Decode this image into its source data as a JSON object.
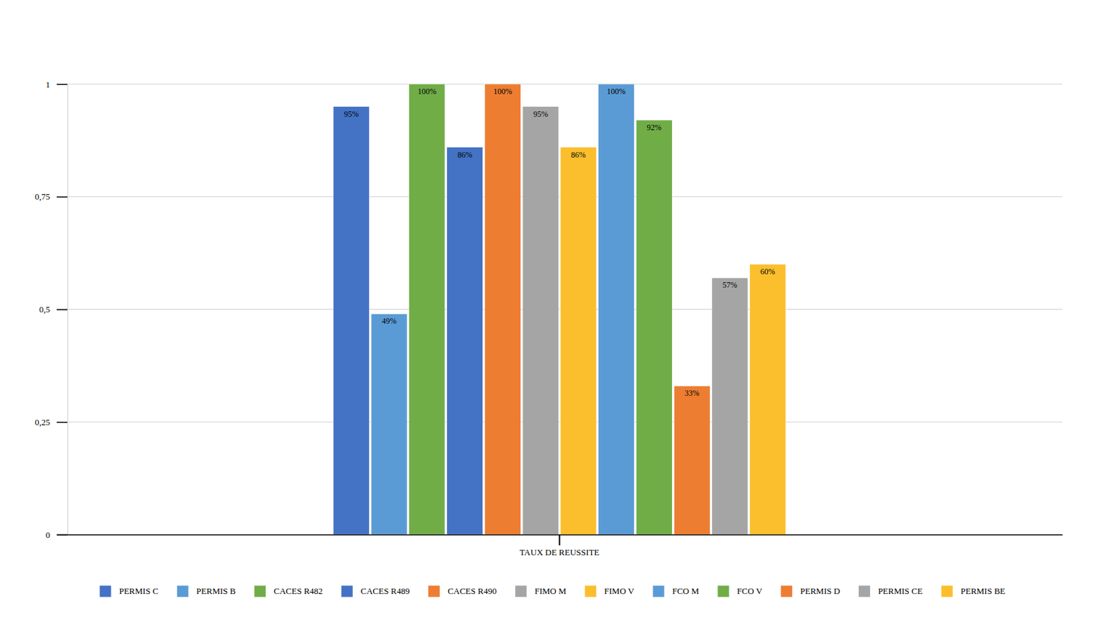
{
  "chart_data": {
    "type": "bar",
    "categories": [
      "TAUX DE REUSSITE"
    ],
    "series": [
      {
        "name": "PERMIS C",
        "color": "#4472c4",
        "values": [
          0.95
        ],
        "value_labels": [
          "95%"
        ]
      },
      {
        "name": "PERMIS B",
        "color": "#5b9bd5",
        "values": [
          0.49
        ],
        "value_labels": [
          "49%"
        ]
      },
      {
        "name": "CACES R482",
        "color": "#70ad47",
        "values": [
          1
        ],
        "value_labels": [
          "100%"
        ]
      },
      {
        "name": "CACES R489",
        "color": "#4472c4",
        "values": [
          0.86
        ],
        "value_labels": [
          "86%"
        ]
      },
      {
        "name": "CACES R490",
        "color": "#ed7d31",
        "values": [
          1
        ],
        "value_labels": [
          "100%"
        ]
      },
      {
        "name": "FIMO M",
        "color": "#a5a5a5",
        "values": [
          0.95
        ],
        "value_labels": [
          "95%"
        ]
      },
      {
        "name": "FIMO V",
        "color": "#fbbf2d",
        "values": [
          0.86
        ],
        "value_labels": [
          "86%"
        ]
      },
      {
        "name": "FCO M",
        "color": "#5b9bd5",
        "values": [
          1
        ],
        "value_labels": [
          "100%"
        ]
      },
      {
        "name": "FCO V",
        "color": "#70ad47",
        "values": [
          0.92
        ],
        "value_labels": [
          "92%"
        ]
      },
      {
        "name": "PERMIS D",
        "color": "#ed7d31",
        "values": [
          0.33
        ],
        "value_labels": [
          "33%"
        ]
      },
      {
        "name": "PERMIS CE",
        "color": "#a5a5a5",
        "values": [
          0.57
        ],
        "value_labels": [
          "57%"
        ]
      },
      {
        "name": "PERMIS BE",
        "color": "#fbbf2d",
        "values": [
          0.6
        ],
        "value_labels": [
          "60%"
        ]
      }
    ],
    "ylim": [
      0,
      1
    ],
    "yticks": [
      0,
      {
        "value": 0.25,
        "label": "0,25"
      },
      {
        "value": 0.5,
        "label": "0,5"
      },
      {
        "value": 0.75,
        "label": "0,75"
      },
      1
    ],
    "grid": true,
    "legend": "bottom",
    "data_labels": true
  }
}
